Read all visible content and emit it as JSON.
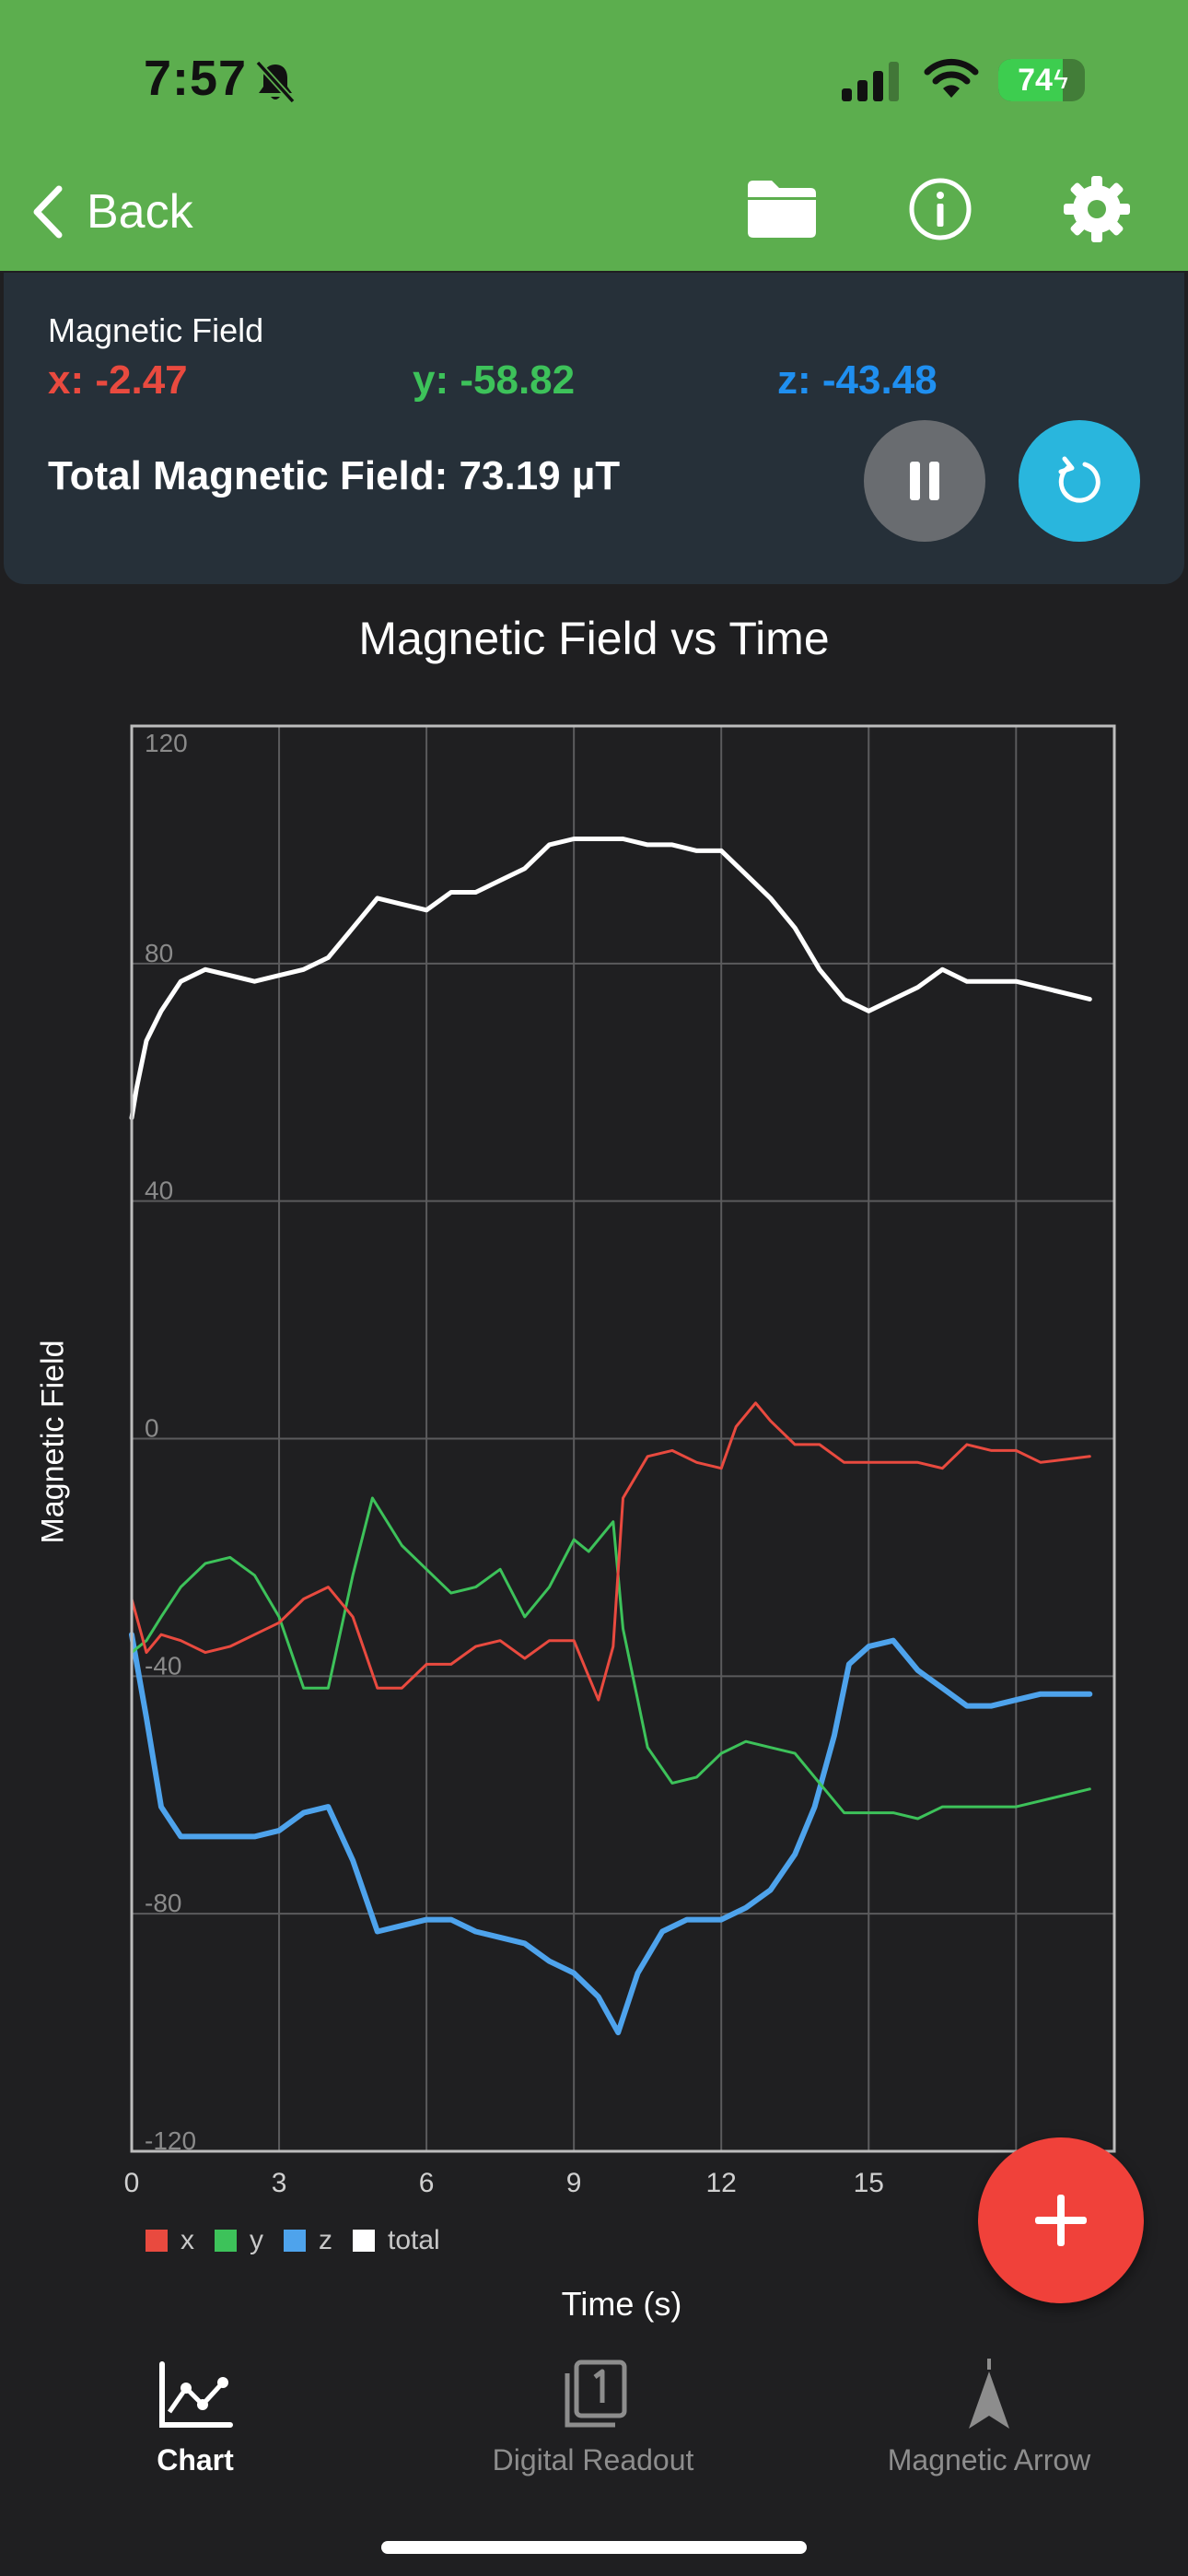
{
  "status_bar": {
    "time": "7:57",
    "battery": "74",
    "battery_level": 0.74
  },
  "nav": {
    "back_label": "Back"
  },
  "readout": {
    "title": "Magnetic Field",
    "x": "x: -2.47",
    "y": "y: -58.82",
    "z": "z: -43.48",
    "total": "Total Magnetic Field: 73.19 µT"
  },
  "colors": {
    "x": "#e94a3f",
    "y": "#3dc25a",
    "z": "#4ea3ec",
    "total": "#ffffff",
    "header": "#5cae4e",
    "fab": "#f0413a"
  },
  "chart_data": {
    "type": "line",
    "title": "Magnetic Field vs Time",
    "xlabel": "Time (s)",
    "ylabel": "Magnetic Field",
    "xlim": [
      0,
      20
    ],
    "ylim": [
      -120,
      120
    ],
    "x_ticks": [
      0,
      3,
      6,
      9,
      12,
      15
    ],
    "y_ticks": [
      120,
      80,
      40,
      0,
      -40,
      -80,
      -120
    ],
    "grid": true,
    "legend_placement": "bottom-left",
    "series": [
      {
        "name": "x",
        "x": [
          0,
          0.3,
          0.6,
          1,
          1.5,
          2,
          2.5,
          3,
          3.5,
          4,
          4.5,
          5,
          5.5,
          6,
          6.5,
          7,
          7.5,
          8,
          8.5,
          9,
          9.5,
          9.8,
          10,
          10.5,
          11,
          11.5,
          12,
          12.3,
          12.7,
          13,
          13.5,
          14,
          14.5,
          15,
          15.5,
          16,
          16.5,
          17,
          17.5,
          18,
          18.5,
          19.5
        ],
        "y": [
          -27,
          -36,
          -33,
          -34,
          -36,
          -35,
          -33,
          -31,
          -27,
          -25,
          -30,
          -42,
          -42,
          -38,
          -38,
          -35,
          -34,
          -37,
          -34,
          -34,
          -44,
          -35,
          -10,
          -3,
          -2,
          -4,
          -5,
          2,
          6,
          3,
          -1,
          -1,
          -4,
          -4,
          -4,
          -4,
          -5,
          -1,
          -2,
          -2,
          -4,
          -3
        ]
      },
      {
        "name": "y",
        "x": [
          0,
          0.3,
          0.6,
          1,
          1.5,
          2,
          2.5,
          3,
          3.5,
          4,
          4.5,
          4.9,
          5.5,
          6,
          6.5,
          7,
          7.5,
          8,
          8.5,
          9,
          9.3,
          9.6,
          9.8,
          10,
          10.5,
          11,
          11.5,
          12,
          12.5,
          13,
          13.5,
          14,
          14.5,
          15,
          15.5,
          16,
          16.5,
          17,
          17.5,
          18,
          18.5,
          19.5
        ],
        "y": [
          -36,
          -34,
          -30,
          -25,
          -21,
          -20,
          -23,
          -30,
          -42,
          -42,
          -23,
          -10,
          -18,
          -22,
          -26,
          -25,
          -22,
          -30,
          -25,
          -17,
          -19,
          -16,
          -14,
          -32,
          -52,
          -58,
          -57,
          -53,
          -51,
          -52,
          -53,
          -58,
          -63,
          -63,
          -63,
          -64,
          -62,
          -62,
          -62,
          -62,
          -61,
          -59
        ]
      },
      {
        "name": "z",
        "x": [
          0,
          0.3,
          0.6,
          1,
          1.5,
          2,
          2.5,
          3,
          3.5,
          4,
          4.5,
          5,
          5.5,
          6,
          6.5,
          7,
          7.5,
          8,
          8.5,
          9,
          9.5,
          9.9,
          10.3,
          10.8,
          11.3,
          12,
          12.5,
          13,
          13.5,
          13.9,
          14.3,
          14.6,
          15,
          15.5,
          16,
          16.5,
          17,
          17.5,
          18,
          18.5,
          19.5
        ],
        "y": [
          -33,
          -47,
          -62,
          -67,
          -67,
          -67,
          -67,
          -66,
          -63,
          -62,
          -71,
          -83,
          -82,
          -81,
          -81,
          -83,
          -84,
          -85,
          -88,
          -90,
          -94,
          -100,
          -90,
          -83,
          -81,
          -81,
          -79,
          -76,
          -70,
          -62,
          -50,
          -38,
          -35,
          -34,
          -39,
          -42,
          -45,
          -45,
          -44,
          -43,
          -43
        ]
      },
      {
        "name": "total",
        "x": [
          0,
          0.1,
          0.3,
          0.6,
          1,
          1.5,
          2,
          2.5,
          3,
          3.5,
          4,
          4.5,
          5,
          5.5,
          6,
          6.5,
          7,
          7.5,
          8,
          8.5,
          9,
          9.5,
          10,
          10.5,
          11,
          11.5,
          12,
          12.5,
          13,
          13.5,
          14,
          14.5,
          15,
          15.5,
          16,
          16.5,
          17,
          17.5,
          18,
          18.5,
          19.5
        ],
        "y": [
          54,
          59,
          67,
          72,
          77,
          79,
          78,
          77,
          78,
          79,
          81,
          86,
          91,
          90,
          89,
          92,
          92,
          94,
          96,
          100,
          101,
          101,
          101,
          100,
          100,
          99,
          99,
          95,
          91,
          86,
          79,
          74,
          72,
          74,
          76,
          79,
          77,
          77,
          77,
          76,
          74
        ]
      }
    ]
  },
  "tabs": [
    {
      "label": "Chart"
    },
    {
      "label": "Digital Readout"
    },
    {
      "label": "Magnetic Arrow"
    }
  ]
}
